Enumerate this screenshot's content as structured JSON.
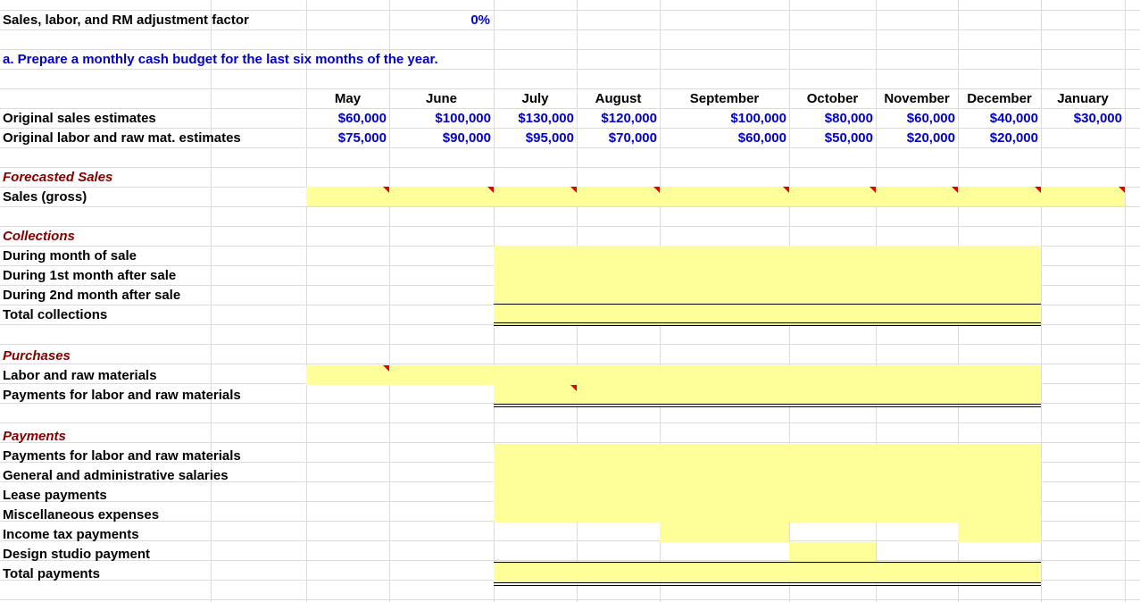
{
  "adjustment": {
    "label": "Sales, labor, and RM adjustment factor",
    "value": "0%"
  },
  "instruction": "a.  Prepare a monthly cash budget for the last six months of the year.",
  "months": [
    "May",
    "June",
    "July",
    "August",
    "September",
    "October",
    "November",
    "December",
    "January"
  ],
  "estimates": [
    {
      "label": "Original sales estimates",
      "values": [
        "$60,000",
        "$100,000",
        "$130,000",
        "$120,000",
        "$100,000",
        "$80,000",
        "$60,000",
        "$40,000",
        "$30,000"
      ]
    },
    {
      "label": "Original labor and raw mat. estimates",
      "values": [
        "$75,000",
        "$90,000",
        "$95,000",
        "$70,000",
        "$60,000",
        "$50,000",
        "$20,000",
        "$20,000",
        ""
      ]
    }
  ],
  "forecast": {
    "title": "Forecasted Sales",
    "rows": [
      "Sales (gross)"
    ]
  },
  "collections": {
    "title": "Collections",
    "rows": [
      "During month of sale",
      "During 1st month after sale",
      "During 2nd month after sale",
      "Total collections"
    ]
  },
  "purchases": {
    "title": "Purchases",
    "rows": [
      "Labor and raw materials",
      "Payments for labor and raw materials"
    ]
  },
  "payments": {
    "title": "Payments",
    "rows": [
      "Payments for labor and raw materials",
      "General and administrative salaries",
      "Lease payments",
      "Miscellaneous expenses",
      "Income tax payments",
      "Design studio payment",
      "Total payments"
    ]
  },
  "colors": {
    "input_fill": "#ffff99",
    "input_text": "#0000cc",
    "section_title": "#800000",
    "comment_marker": "#e00000",
    "grid": "#dcdcdc"
  }
}
